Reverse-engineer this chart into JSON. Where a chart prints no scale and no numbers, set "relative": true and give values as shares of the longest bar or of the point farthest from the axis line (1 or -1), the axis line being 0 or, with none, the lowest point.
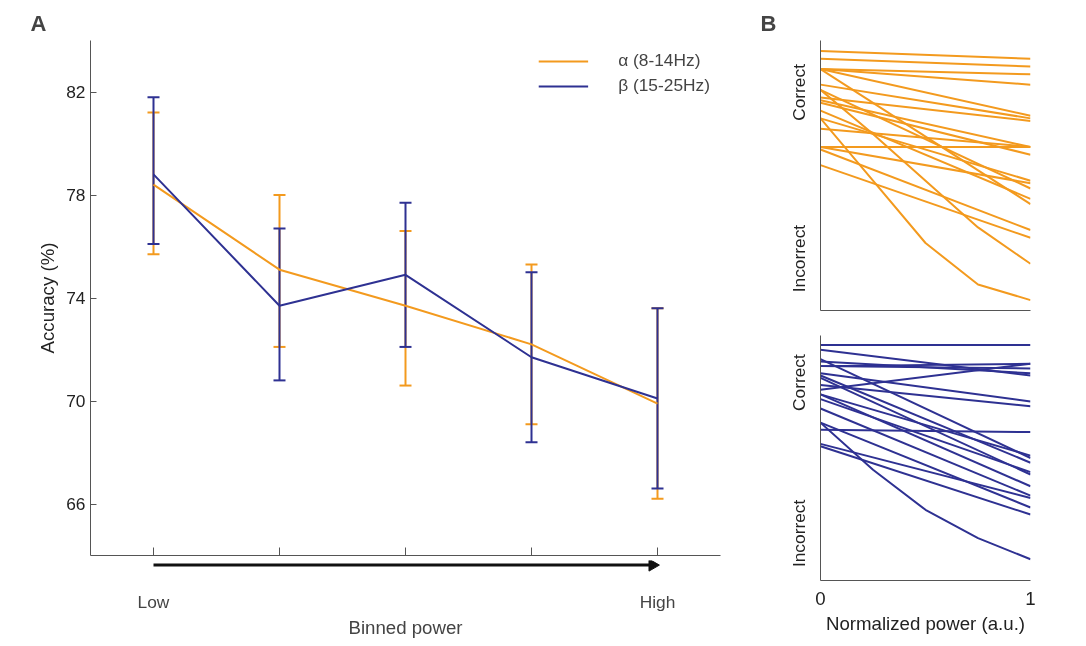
{
  "chart_data": [
    {
      "type": "line",
      "title": "A",
      "xlabel": "Binned power",
      "ylabel": "Accuracy (%)",
      "categories": [
        "Low",
        null,
        null,
        null,
        "High"
      ],
      "ylim": [
        64,
        84
      ],
      "yticks": [
        66,
        70,
        74,
        78,
        82
      ],
      "grid": false,
      "legend": "top right",
      "marker": "none",
      "line_style": "solid",
      "series": [
        {
          "name": "α (8-14Hz)",
          "color": "#f39a1e",
          "values": [
            78.4,
            75.1,
            73.7,
            72.2,
            69.9
          ],
          "errors": [
            [
              75.7,
              81.2
            ],
            [
              72.1,
              78.0
            ],
            [
              70.6,
              76.6
            ],
            [
              69.1,
              75.3
            ],
            [
              66.2,
              73.6
            ]
          ]
        },
        {
          "name": "β (15-25Hz)",
          "color": "#2e3192",
          "values": [
            78.8,
            73.7,
            74.9,
            71.7,
            70.1
          ],
          "errors": [
            [
              76.1,
              81.8
            ],
            [
              70.8,
              76.7
            ],
            [
              72.1,
              77.7
            ],
            [
              68.4,
              75.0
            ],
            [
              66.6,
              73.6
            ]
          ]
        }
      ]
    },
    {
      "type": "line",
      "title": "B",
      "relative": true,
      "xlim": [
        0,
        1
      ],
      "tick_labels": false,
      "grid": false,
      "annotations": [
        "Correct",
        "Incorrect"
      ],
      "series": [
        {
          "color": "#f39a1e",
          "x": [
            0,
            1
          ],
          "values": [
            1.0,
            0.97
          ]
        },
        {
          "color": "#f39a1e",
          "x": [
            0,
            1
          ],
          "values": [
            0.97,
            0.94
          ]
        },
        {
          "color": "#f39a1e",
          "x": [
            0,
            1
          ],
          "values": [
            0.93,
            0.91
          ]
        },
        {
          "color": "#f39a1e",
          "x": [
            0,
            1
          ],
          "values": [
            0.93,
            0.87
          ]
        },
        {
          "color": "#f39a1e",
          "x": [
            0,
            1
          ],
          "values": [
            0.93,
            0.75
          ]
        },
        {
          "color": "#f39a1e",
          "x": [
            0,
            1
          ],
          "values": [
            0.87,
            0.74
          ]
        },
        {
          "color": "#f39a1e",
          "x": [
            0,
            1
          ],
          "values": [
            0.82,
            0.73
          ]
        },
        {
          "color": "#f39a1e",
          "x": [
            0,
            1
          ],
          "values": [
            0.81,
            0.63
          ]
        },
        {
          "color": "#f39a1e",
          "x": [
            0,
            1
          ],
          "values": [
            0.8,
            0.6
          ]
        },
        {
          "color": "#f39a1e",
          "x": [
            0,
            1
          ],
          "values": [
            0.93,
            0.41
          ]
        },
        {
          "color": "#f39a1e",
          "x": [
            0,
            1
          ],
          "values": [
            0.85,
            0.47
          ]
        },
        {
          "color": "#f39a1e",
          "x": [
            0,
            1
          ],
          "values": [
            0.77,
            0.43
          ]
        },
        {
          "color": "#f39a1e",
          "x": [
            0,
            1
          ],
          "values": [
            0.74,
            0.5
          ]
        },
        {
          "color": "#f39a1e",
          "x": [
            0,
            1
          ],
          "values": [
            0.7,
            0.63
          ]
        },
        {
          "color": "#f39a1e",
          "x": [
            0,
            1
          ],
          "values": [
            0.63,
            0.63
          ]
        },
        {
          "color": "#f39a1e",
          "x": [
            0,
            1
          ],
          "values": [
            0.63,
            0.49
          ]
        },
        {
          "color": "#f39a1e",
          "x": [
            0,
            1
          ],
          "values": [
            0.62,
            0.31
          ]
        },
        {
          "color": "#f39a1e",
          "x": [
            0,
            1
          ],
          "values": [
            0.56,
            0.28
          ]
        },
        {
          "color": "#f39a1e",
          "x": [
            0,
            0.25,
            0.5,
            0.75,
            1
          ],
          "values": [
            0.85,
            0.68,
            0.5,
            0.32,
            0.18
          ]
        },
        {
          "color": "#f39a1e",
          "x": [
            0,
            0.25,
            0.5,
            0.75,
            1
          ],
          "values": [
            0.74,
            0.5,
            0.26,
            0.1,
            0.04
          ]
        }
      ]
    },
    {
      "type": "line",
      "relative": true,
      "xlabel": "Normalized power (a.u.)",
      "xlim": [
        0,
        1
      ],
      "xticks": [
        0,
        1
      ],
      "tick_labels": "x",
      "grid": false,
      "annotations": [
        "Correct",
        "Incorrect"
      ],
      "series": [
        {
          "color": "#2e3192",
          "x": [
            0,
            1
          ],
          "values": [
            1.0,
            1.0
          ]
        },
        {
          "color": "#2e3192",
          "x": [
            0,
            1
          ],
          "values": [
            0.98,
            0.87
          ]
        },
        {
          "color": "#2e3192",
          "x": [
            0,
            1
          ],
          "values": [
            0.91,
            0.92
          ]
        },
        {
          "color": "#2e3192",
          "x": [
            0,
            1
          ],
          "values": [
            0.91,
            0.9
          ]
        },
        {
          "color": "#2e3192",
          "x": [
            0,
            1
          ],
          "values": [
            0.94,
            0.52
          ]
        },
        {
          "color": "#2e3192",
          "x": [
            0,
            1
          ],
          "values": [
            0.93,
            0.88
          ]
        },
        {
          "color": "#2e3192",
          "x": [
            0,
            1
          ],
          "values": [
            0.81,
            0.92
          ]
        },
        {
          "color": "#2e3192",
          "x": [
            0,
            1
          ],
          "values": [
            0.88,
            0.76
          ]
        },
        {
          "color": "#2e3192",
          "x": [
            0,
            1
          ],
          "values": [
            0.83,
            0.74
          ]
        },
        {
          "color": "#2e3192",
          "x": [
            0,
            1
          ],
          "values": [
            0.87,
            0.5
          ]
        },
        {
          "color": "#2e3192",
          "x": [
            0,
            1
          ],
          "values": [
            0.86,
            0.45
          ]
        },
        {
          "color": "#2e3192",
          "x": [
            0,
            1
          ],
          "values": [
            0.79,
            0.53
          ]
        },
        {
          "color": "#2e3192",
          "x": [
            0,
            1
          ],
          "values": [
            0.77,
            0.46
          ]
        },
        {
          "color": "#2e3192",
          "x": [
            0,
            1
          ],
          "values": [
            0.79,
            0.4
          ]
        },
        {
          "color": "#2e3192",
          "x": [
            0,
            1
          ],
          "values": [
            0.73,
            0.36
          ]
        },
        {
          "color": "#2e3192",
          "x": [
            0,
            1
          ],
          "values": [
            0.67,
            0.31
          ]
        },
        {
          "color": "#2e3192",
          "x": [
            0,
            1
          ],
          "values": [
            0.64,
            0.63
          ]
        },
        {
          "color": "#2e3192",
          "x": [
            0,
            1
          ],
          "values": [
            0.58,
            0.35
          ]
        },
        {
          "color": "#2e3192",
          "x": [
            0,
            1
          ],
          "values": [
            0.57,
            0.28
          ]
        },
        {
          "color": "#2e3192",
          "x": [
            0,
            0.25,
            0.5,
            0.75,
            1
          ],
          "values": [
            0.67,
            0.47,
            0.3,
            0.18,
            0.09
          ]
        }
      ]
    }
  ]
}
